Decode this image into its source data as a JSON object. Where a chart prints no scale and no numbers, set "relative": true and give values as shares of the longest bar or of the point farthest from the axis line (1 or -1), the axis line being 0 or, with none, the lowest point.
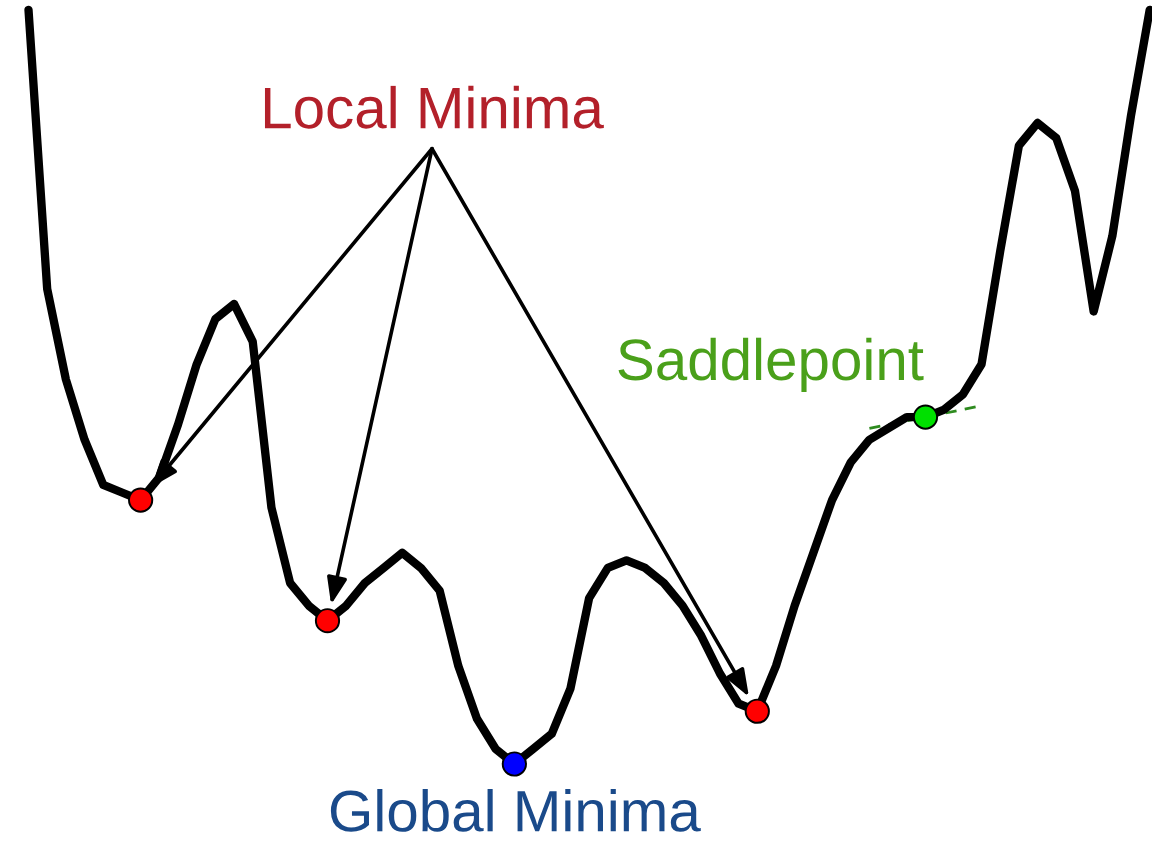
{
  "chart_data": {
    "type": "line",
    "relative": true,
    "categories": [
      null,
      null,
      null,
      null,
      null,
      null,
      null,
      null,
      null,
      null,
      null,
      null,
      null,
      null,
      null,
      null,
      null,
      null,
      null,
      null,
      null,
      null,
      null,
      null,
      null,
      null,
      null,
      null,
      null,
      null,
      null,
      null,
      null,
      null,
      null,
      null,
      null,
      null,
      null,
      null,
      null,
      null,
      null,
      null,
      null,
      null,
      null,
      null,
      null,
      null,
      null,
      null,
      null,
      null,
      null,
      null,
      null,
      null,
      null,
      null,
      null
    ],
    "series": [
      {
        "color": "#000000",
        "values": [
          1.0,
          0.63,
          0.51,
          0.43,
          0.37,
          0.36,
          0.35,
          0.38,
          0.45,
          0.53,
          0.59,
          0.61,
          0.56,
          0.34,
          0.24,
          0.21,
          0.19,
          0.21,
          0.24,
          0.26,
          0.28,
          0.26,
          0.23,
          0.13,
          0.06,
          0.02,
          0.0,
          0.02,
          0.04,
          0.1,
          0.22,
          0.26,
          0.27,
          0.26,
          0.24,
          0.21,
          0.17,
          0.12,
          0.08,
          0.07,
          0.13,
          0.21,
          0.28,
          0.35,
          0.4,
          0.43,
          0.445,
          0.46,
          0.46,
          0.47,
          0.49,
          0.53,
          0.68,
          0.82,
          0.85,
          0.83,
          0.76,
          0.6,
          0.7,
          0.86,
          1.0
        ]
      }
    ],
    "annotations": [
      "Local Minima",
      "Global Minima",
      "Saddlepoint"
    ]
  }
}
